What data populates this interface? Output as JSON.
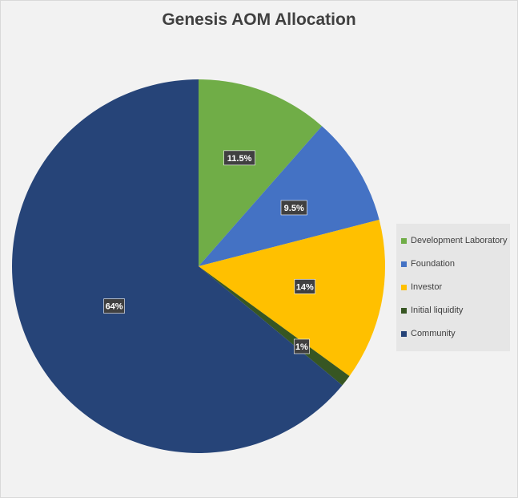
{
  "chart_data": {
    "type": "pie",
    "title": "Genesis AOM Allocation",
    "slices": [
      {
        "name": "Development Laboratory",
        "value": 11.5,
        "label": "11.5%",
        "color": "#70ad47"
      },
      {
        "name": "Foundation",
        "value": 9.5,
        "label": "9.5%",
        "color": "#4472c4"
      },
      {
        "name": "Investor",
        "value": 14,
        "label": "14%",
        "color": "#ffc000"
      },
      {
        "name": "Initial liquidity",
        "value": 1,
        "label": "1%",
        "color": "#375623"
      },
      {
        "name": "Community",
        "value": 64,
        "label": "64%",
        "color": "#264478"
      }
    ],
    "legend_position": "right"
  }
}
